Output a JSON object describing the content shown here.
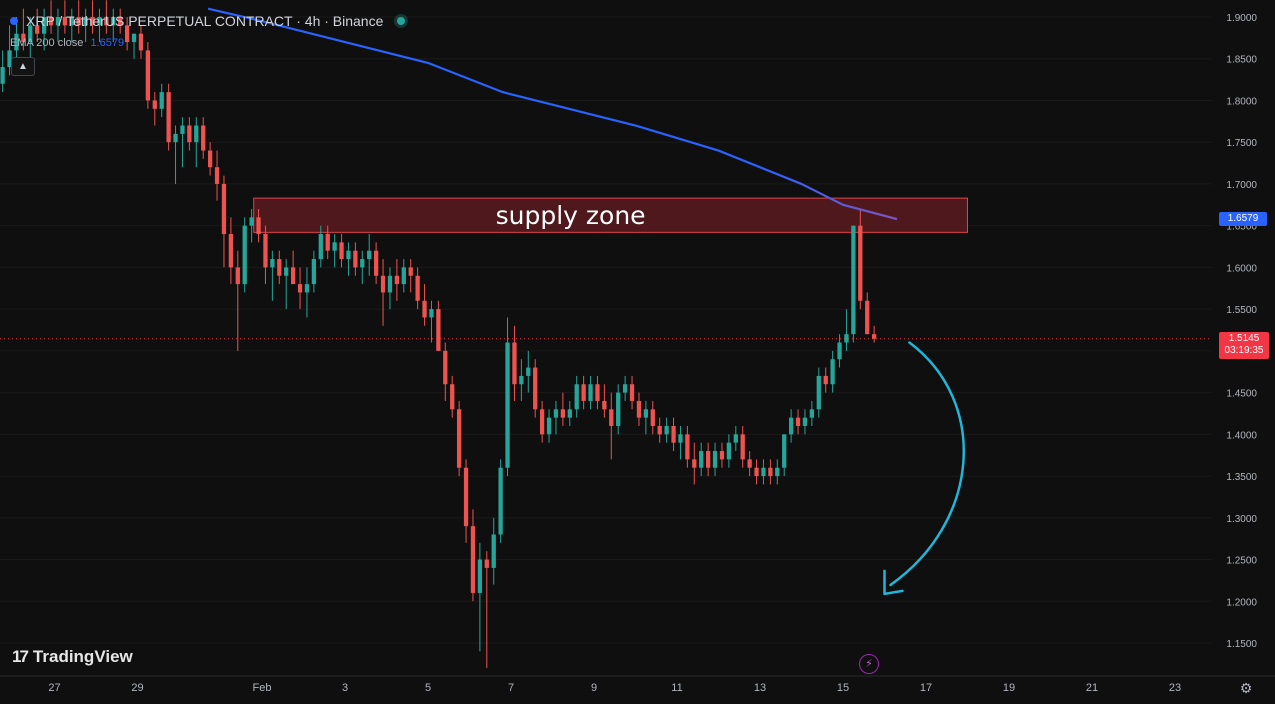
{
  "header": {
    "symbol_title": "XRP / TetherUS PERPETUAL CONTRACT · 4h · Binance",
    "indicator_name": "EMA 200 close",
    "indicator_value": "1.6579"
  },
  "branding": {
    "logo_text": "TradingView",
    "logo_mark": "17"
  },
  "price_labels": {
    "ema_value": "1.6579",
    "last_price": "1.5145",
    "countdown": "03:19:35"
  },
  "annotation": {
    "zone_label": "supply zone"
  },
  "colors": {
    "background": "#0f0f0f",
    "up": "#26a69a",
    "down": "#ef5350",
    "ema": "#2962ff",
    "ema_end": "#7e57c2",
    "zone_fill": "#5a1a1e",
    "zone_border": "#e0424a",
    "arrow": "#22b5d8"
  },
  "chart_data": {
    "type": "candlestick",
    "title": "",
    "y_axis": {
      "min": 1.12,
      "max": 1.92,
      "ticks": [
        1.9,
        1.85,
        1.8,
        1.75,
        1.7,
        1.65,
        1.6,
        1.55,
        1.5,
        1.45,
        1.4,
        1.35,
        1.3,
        1.25,
        1.2,
        1.15
      ],
      "tick_labels": [
        "1.9000",
        "1.8500",
        "1.8000",
        "1.7500",
        "1.7000",
        "1.6500",
        "1.6000",
        "1.5500",
        "1.5000",
        "1.4500",
        "1.4000",
        "1.3500",
        "1.3000",
        "1.2500",
        "1.2000",
        "1.1500"
      ]
    },
    "x_axis": {
      "labels": [
        "27",
        "29",
        "Feb",
        "3",
        "5",
        "7",
        "9",
        "11",
        "13",
        "15",
        "17",
        "19",
        "21",
        "23"
      ],
      "day_index": [
        -5,
        -3,
        0,
        2,
        4,
        6,
        8,
        10,
        12,
        14,
        16,
        18,
        20,
        22
      ],
      "visible_day_range": [
        -6.3,
        23.9
      ]
    },
    "candles_per_day": 6,
    "first_candle_day": -6.25,
    "candles": [
      [
        1.82,
        1.86,
        1.81,
        1.84
      ],
      [
        1.84,
        1.89,
        1.83,
        1.86
      ],
      [
        1.86,
        1.9,
        1.85,
        1.88
      ],
      [
        1.88,
        1.91,
        1.86,
        1.87
      ],
      [
        1.87,
        1.9,
        1.85,
        1.89
      ],
      [
        1.89,
        1.91,
        1.87,
        1.88
      ],
      [
        1.88,
        1.91,
        1.86,
        1.9
      ],
      [
        1.9,
        1.92,
        1.88,
        1.89
      ],
      [
        1.89,
        1.91,
        1.87,
        1.9
      ],
      [
        1.9,
        1.92,
        1.88,
        1.89
      ],
      [
        1.89,
        1.91,
        1.87,
        1.9
      ],
      [
        1.9,
        1.92,
        1.88,
        1.89
      ],
      [
        1.89,
        1.91,
        1.87,
        1.9
      ],
      [
        1.9,
        1.92,
        1.88,
        1.89
      ],
      [
        1.89,
        1.91,
        1.87,
        1.9
      ],
      [
        1.9,
        1.92,
        1.88,
        1.89
      ],
      [
        1.89,
        1.91,
        1.87,
        1.9
      ],
      [
        1.9,
        1.91,
        1.88,
        1.89
      ],
      [
        1.89,
        1.9,
        1.86,
        1.87
      ],
      [
        1.87,
        1.88,
        1.85,
        1.88
      ],
      [
        1.88,
        1.89,
        1.85,
        1.86
      ],
      [
        1.86,
        1.87,
        1.79,
        1.8
      ],
      [
        1.8,
        1.81,
        1.77,
        1.79
      ],
      [
        1.79,
        1.82,
        1.78,
        1.81
      ],
      [
        1.81,
        1.82,
        1.74,
        1.75
      ],
      [
        1.75,
        1.77,
        1.7,
        1.76
      ],
      [
        1.76,
        1.78,
        1.72,
        1.77
      ],
      [
        1.77,
        1.78,
        1.74,
        1.75
      ],
      [
        1.75,
        1.78,
        1.72,
        1.77
      ],
      [
        1.77,
        1.78,
        1.73,
        1.74
      ],
      [
        1.74,
        1.75,
        1.71,
        1.72
      ],
      [
        1.72,
        1.74,
        1.68,
        1.7
      ],
      [
        1.7,
        1.71,
        1.6,
        1.64
      ],
      [
        1.64,
        1.66,
        1.58,
        1.6
      ],
      [
        1.6,
        1.62,
        1.5,
        1.58
      ],
      [
        1.58,
        1.66,
        1.57,
        1.65
      ],
      [
        1.65,
        1.67,
        1.63,
        1.66
      ],
      [
        1.66,
        1.67,
        1.63,
        1.64
      ],
      [
        1.64,
        1.65,
        1.58,
        1.6
      ],
      [
        1.6,
        1.62,
        1.56,
        1.61
      ],
      [
        1.61,
        1.62,
        1.58,
        1.59
      ],
      [
        1.59,
        1.61,
        1.55,
        1.6
      ],
      [
        1.6,
        1.62,
        1.58,
        1.58
      ],
      [
        1.58,
        1.6,
        1.55,
        1.57
      ],
      [
        1.57,
        1.6,
        1.54,
        1.58
      ],
      [
        1.58,
        1.62,
        1.57,
        1.61
      ],
      [
        1.61,
        1.65,
        1.6,
        1.64
      ],
      [
        1.64,
        1.65,
        1.61,
        1.62
      ],
      [
        1.62,
        1.64,
        1.6,
        1.63
      ],
      [
        1.63,
        1.64,
        1.6,
        1.61
      ],
      [
        1.61,
        1.63,
        1.59,
        1.62
      ],
      [
        1.62,
        1.63,
        1.59,
        1.6
      ],
      [
        1.6,
        1.62,
        1.58,
        1.61
      ],
      [
        1.61,
        1.64,
        1.59,
        1.62
      ],
      [
        1.62,
        1.63,
        1.58,
        1.59
      ],
      [
        1.59,
        1.61,
        1.53,
        1.57
      ],
      [
        1.57,
        1.6,
        1.55,
        1.59
      ],
      [
        1.59,
        1.61,
        1.56,
        1.58
      ],
      [
        1.58,
        1.61,
        1.57,
        1.6
      ],
      [
        1.6,
        1.61,
        1.57,
        1.59
      ],
      [
        1.59,
        1.6,
        1.55,
        1.56
      ],
      [
        1.56,
        1.58,
        1.53,
        1.54
      ],
      [
        1.54,
        1.56,
        1.51,
        1.55
      ],
      [
        1.55,
        1.56,
        1.5,
        1.5
      ],
      [
        1.5,
        1.51,
        1.44,
        1.46
      ],
      [
        1.46,
        1.47,
        1.42,
        1.43
      ],
      [
        1.43,
        1.44,
        1.35,
        1.36
      ],
      [
        1.36,
        1.37,
        1.27,
        1.29
      ],
      [
        1.29,
        1.31,
        1.2,
        1.21
      ],
      [
        1.21,
        1.27,
        1.14,
        1.25
      ],
      [
        1.25,
        1.26,
        1.12,
        1.24
      ],
      [
        1.24,
        1.3,
        1.22,
        1.28
      ],
      [
        1.28,
        1.37,
        1.27,
        1.36
      ],
      [
        1.36,
        1.54,
        1.35,
        1.51
      ],
      [
        1.51,
        1.53,
        1.44,
        1.46
      ],
      [
        1.46,
        1.49,
        1.44,
        1.47
      ],
      [
        1.47,
        1.5,
        1.45,
        1.48
      ],
      [
        1.48,
        1.49,
        1.42,
        1.43
      ],
      [
        1.43,
        1.44,
        1.39,
        1.4
      ],
      [
        1.4,
        1.43,
        1.39,
        1.42
      ],
      [
        1.42,
        1.44,
        1.4,
        1.43
      ],
      [
        1.43,
        1.45,
        1.41,
        1.42
      ],
      [
        1.42,
        1.44,
        1.41,
        1.43
      ],
      [
        1.43,
        1.47,
        1.42,
        1.46
      ],
      [
        1.46,
        1.47,
        1.43,
        1.44
      ],
      [
        1.44,
        1.47,
        1.43,
        1.46
      ],
      [
        1.46,
        1.47,
        1.43,
        1.44
      ],
      [
        1.44,
        1.46,
        1.42,
        1.43
      ],
      [
        1.43,
        1.45,
        1.37,
        1.41
      ],
      [
        1.41,
        1.46,
        1.4,
        1.45
      ],
      [
        1.45,
        1.47,
        1.44,
        1.46
      ],
      [
        1.46,
        1.47,
        1.43,
        1.44
      ],
      [
        1.44,
        1.45,
        1.41,
        1.42
      ],
      [
        1.42,
        1.44,
        1.4,
        1.43
      ],
      [
        1.43,
        1.44,
        1.4,
        1.41
      ],
      [
        1.41,
        1.42,
        1.39,
        1.4
      ],
      [
        1.4,
        1.42,
        1.39,
        1.41
      ],
      [
        1.41,
        1.42,
        1.38,
        1.39
      ],
      [
        1.39,
        1.41,
        1.37,
        1.4
      ],
      [
        1.4,
        1.41,
        1.36,
        1.37
      ],
      [
        1.37,
        1.39,
        1.34,
        1.36
      ],
      [
        1.36,
        1.39,
        1.35,
        1.38
      ],
      [
        1.38,
        1.39,
        1.35,
        1.36
      ],
      [
        1.36,
        1.39,
        1.35,
        1.38
      ],
      [
        1.38,
        1.39,
        1.36,
        1.37
      ],
      [
        1.37,
        1.4,
        1.36,
        1.39
      ],
      [
        1.39,
        1.41,
        1.38,
        1.4
      ],
      [
        1.4,
        1.41,
        1.36,
        1.37
      ],
      [
        1.37,
        1.38,
        1.35,
        1.36
      ],
      [
        1.36,
        1.37,
        1.34,
        1.35
      ],
      [
        1.35,
        1.37,
        1.34,
        1.36
      ],
      [
        1.36,
        1.37,
        1.34,
        1.35
      ],
      [
        1.35,
        1.37,
        1.34,
        1.36
      ],
      [
        1.36,
        1.4,
        1.35,
        1.4
      ],
      [
        1.4,
        1.43,
        1.39,
        1.42
      ],
      [
        1.42,
        1.43,
        1.4,
        1.41
      ],
      [
        1.41,
        1.43,
        1.4,
        1.42
      ],
      [
        1.42,
        1.44,
        1.41,
        1.43
      ],
      [
        1.43,
        1.48,
        1.42,
        1.47
      ],
      [
        1.47,
        1.48,
        1.45,
        1.46
      ],
      [
        1.46,
        1.5,
        1.45,
        1.49
      ],
      [
        1.49,
        1.52,
        1.48,
        1.51
      ],
      [
        1.51,
        1.55,
        1.5,
        1.52
      ],
      [
        1.52,
        1.65,
        1.51,
        1.65
      ],
      [
        1.65,
        1.67,
        1.55,
        1.56
      ],
      [
        1.56,
        1.57,
        1.52,
        1.52
      ],
      [
        1.52,
        1.53,
        1.51,
        1.5145
      ]
    ],
    "ema": {
      "name": "EMA 200 close",
      "points": [
        [
          -1.3,
          1.91
        ],
        [
          0,
          1.895
        ],
        [
          2,
          1.87
        ],
        [
          4,
          1.845
        ],
        [
          5.8,
          1.81
        ],
        [
          7,
          1.795
        ],
        [
          9,
          1.77
        ],
        [
          11,
          1.74
        ],
        [
          13,
          1.7
        ],
        [
          14,
          1.675
        ],
        [
          15.3,
          1.6579
        ]
      ]
    },
    "supply_zone": {
      "label": "supply zone",
      "y_range": [
        1.642,
        1.683
      ],
      "x_range": [
        -0.2,
        17.0
      ]
    },
    "current_price": 1.5145,
    "ema_current": 1.6579
  }
}
